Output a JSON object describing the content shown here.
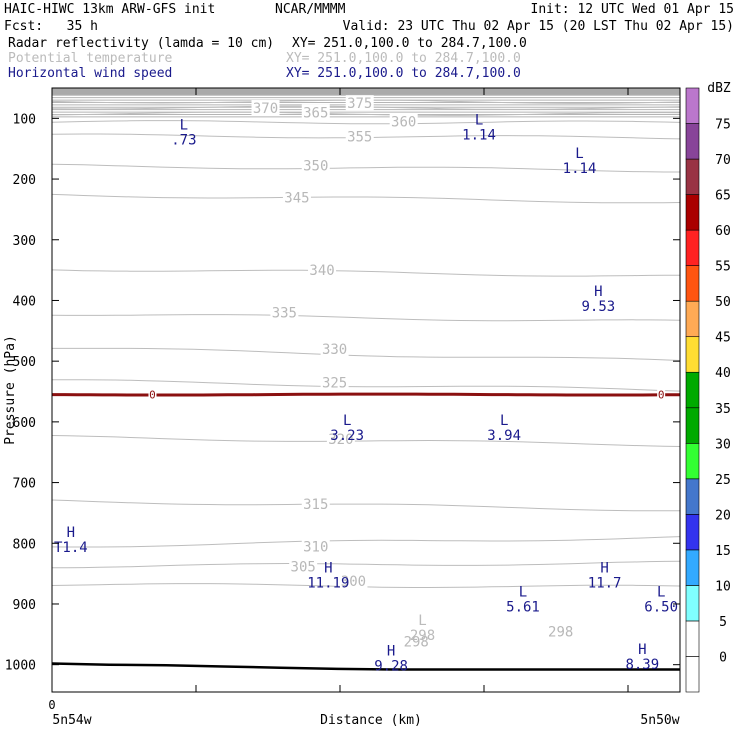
{
  "header": {
    "model": "HAIC-HIWC 13km ARW-GFS init",
    "org": "NCAR/MMMM",
    "init": "Init: 12 UTC Wed 01 Apr 15",
    "fcst": "Fcst:   35 h",
    "valid": "Valid: 23 UTC Thu 02 Apr 15 (20 LST Thu 02 Apr 15)",
    "fields": [
      {
        "name": "Radar reflectivity (lamda = 10 cm)",
        "xy": "XY= 251.0,100.0 to 284.7,100.0",
        "color": "#000000"
      },
      {
        "name": "Potential temperature",
        "xy": "XY= 251.0,100.0 to 284.7,100.0",
        "color": "#bbbbbb"
      },
      {
        "name": "Horizontal wind speed",
        "xy": "XY= 251.0,100.0 to 284.7,100.0",
        "color": "#1a1a8c"
      }
    ]
  },
  "chart_data": {
    "type": "cross-section contour",
    "ylabel": "Pressure (hPa)",
    "xlabel": "Distance (km)",
    "y_ticks": [
      100,
      200,
      300,
      400,
      500,
      600,
      700,
      800,
      900,
      1000
    ],
    "ylim_hpa": [
      1045,
      50
    ],
    "x_tick_label": "0",
    "x_left_label": "5n54w",
    "x_right_label": "5n50w",
    "theta_contours": [
      {
        "value": "375",
        "levels": [
          72,
          73
        ]
      },
      {
        "value": "370",
        "levels": [
          82,
          83
        ]
      },
      {
        "value": "365",
        "levels": [
          92,
          93
        ]
      },
      {
        "value": "360",
        "levels": [
          106,
          107
        ]
      },
      {
        "value": "355",
        "levels": [
          128,
          132
        ]
      },
      {
        "value": "350",
        "levels": [
          178,
          186
        ]
      },
      {
        "value": "345",
        "levels": [
          226,
          238
        ]
      },
      {
        "value": "340",
        "levels": [
          348,
          360
        ]
      },
      {
        "value": "335",
        "levels": [
          422,
          435
        ]
      },
      {
        "value": "330",
        "levels": [
          478,
          500
        ]
      },
      {
        "value": "325",
        "levels": [
          532,
          548
        ]
      },
      {
        "value": "320",
        "levels": [
          625,
          638
        ]
      },
      {
        "value": "315",
        "levels": [
          730,
          745
        ]
      },
      {
        "value": "310",
        "levels": [
          805,
          790
        ]
      },
      {
        "value": "305",
        "levels": [
          838,
          832
        ]
      },
      {
        "value": "300",
        "levels": [
          868,
          872
        ]
      }
    ],
    "theta_labels": [
      {
        "text": "375",
        "x": 0.49,
        "p": 75
      },
      {
        "text": "370",
        "x": 0.34,
        "p": 83
      },
      {
        "text": "365",
        "x": 0.42,
        "p": 90
      },
      {
        "text": "360",
        "x": 0.56,
        "p": 105
      },
      {
        "text": "355",
        "x": 0.49,
        "p": 130
      },
      {
        "text": "350",
        "x": 0.42,
        "p": 178
      },
      {
        "text": "345",
        "x": 0.39,
        "p": 230
      },
      {
        "text": "340",
        "x": 0.43,
        "p": 350
      },
      {
        "text": "335",
        "x": 0.37,
        "p": 420
      },
      {
        "text": "330",
        "x": 0.45,
        "p": 480
      },
      {
        "text": "325",
        "x": 0.45,
        "p": 535
      },
      {
        "text": "320",
        "x": 0.46,
        "p": 628
      },
      {
        "text": "315",
        "x": 0.42,
        "p": 735
      },
      {
        "text": "310",
        "x": 0.42,
        "p": 805
      },
      {
        "text": "305",
        "x": 0.4,
        "p": 838
      },
      {
        "text": "300",
        "x": 0.48,
        "p": 862
      },
      {
        "text": "298",
        "x": 0.58,
        "p": 962
      },
      {
        "text": "298",
        "x": 0.81,
        "p": 945
      }
    ],
    "wind_extrema": [
      {
        "kind": "L",
        "value": ".73",
        "x": 0.21,
        "p": 118
      },
      {
        "kind": "L",
        "value": "1.14",
        "x": 0.68,
        "p": 110
      },
      {
        "kind": "L",
        "value": "1.14",
        "x": 0.84,
        "p": 165
      },
      {
        "kind": "H",
        "value": "9.53",
        "x": 0.87,
        "p": 393
      },
      {
        "kind": "L",
        "value": "3.23",
        "x": 0.47,
        "p": 605
      },
      {
        "kind": "L",
        "value": "3.94",
        "x": 0.72,
        "p": 605
      },
      {
        "kind": "H",
        "value": "T1.4",
        "x": 0.03,
        "p": 790
      },
      {
        "kind": "H",
        "value": "11.19",
        "x": 0.44,
        "p": 848
      },
      {
        "kind": "H",
        "value": "11.7",
        "x": 0.88,
        "p": 848
      },
      {
        "kind": "L",
        "value": "5.61",
        "x": 0.75,
        "p": 888
      },
      {
        "kind": "L",
        "value": "6.50",
        "x": 0.97,
        "p": 888
      },
      {
        "kind": "L",
        "value": "298",
        "x": 0.59,
        "p": 935,
        "color": "#bbbbbb"
      },
      {
        "kind": "H",
        "value": "9.28",
        "x": 0.54,
        "p": 985
      },
      {
        "kind": "H",
        "value": "8.39",
        "x": 0.94,
        "p": 982
      }
    ],
    "reflectivity_zero_line": {
      "label": "0",
      "p": 555
    },
    "terrain_p": [
      998,
      1000,
      1001,
      1003,
      1005,
      1007,
      1008,
      1008,
      1008,
      1008,
      1008,
      1008
    ],
    "colorbar": {
      "unit": "dBZ",
      "levels": [
        "0",
        "5",
        "10",
        "15",
        "20",
        "25",
        "30",
        "35",
        "40",
        "45",
        "50",
        "55",
        "60",
        "65",
        "70",
        "75"
      ],
      "colors": [
        "#ffffff",
        "#ffffff",
        "#80ffff",
        "#33aaff",
        "#3333ee",
        "#4477cc",
        "#33ff33",
        "#00aa00",
        "#00aa00",
        "#ffdd33",
        "#ffaa55",
        "#ff5511",
        "#ff2222",
        "#aa0000",
        "#993344",
        "#884499",
        "#bb77cc"
      ]
    }
  }
}
